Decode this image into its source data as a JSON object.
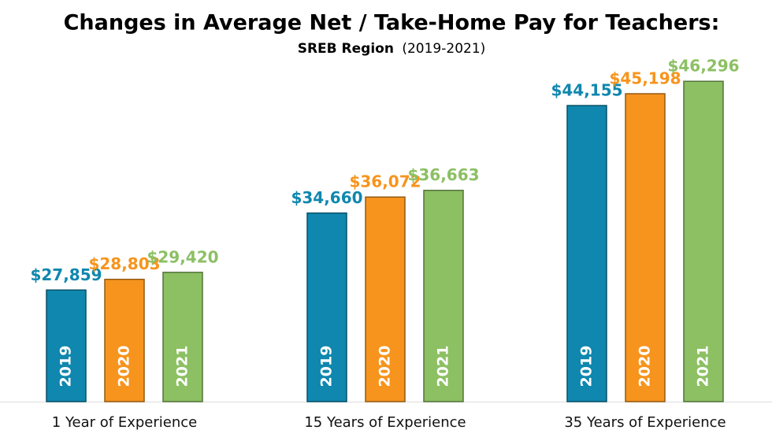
{
  "chart_data": {
    "type": "bar",
    "title": "Changes in Average Net / Take-Home Pay for Teachers:",
    "subtitle": [
      "SREB Region",
      "(2019-2021)"
    ],
    "categories": [
      "1 Year of Experience",
      "15 Years of Experience",
      "35 Years of Experience"
    ],
    "series": [
      {
        "name": "2019",
        "color": "#0f87ae",
        "values": [
          27859,
          34660,
          44155
        ],
        "value_labels": [
          "$27,859",
          "$34,660",
          "$44,155"
        ]
      },
      {
        "name": "2020",
        "color": "#f7941d",
        "values": [
          28803,
          36072,
          45198
        ],
        "value_labels": [
          "$28,803",
          "$36,072",
          "$45,198"
        ]
      },
      {
        "name": "2021",
        "color": "#8cc063",
        "values": [
          29420,
          36663,
          46296
        ],
        "value_labels": [
          "$29,420",
          "$36,663",
          "$46,296"
        ]
      }
    ],
    "ylim": [
      18000,
      50000
    ]
  }
}
